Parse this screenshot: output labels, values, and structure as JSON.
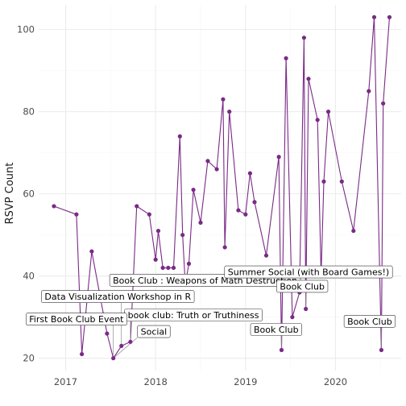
{
  "chart_data": {
    "type": "line",
    "title": "",
    "xlabel": "",
    "ylabel": "RSVP Count",
    "xlim": [
      2016.7,
      2020.73
    ],
    "ylim": [
      17,
      106
    ],
    "x_ticks": [
      2017,
      2018,
      2019,
      2020
    ],
    "x_tick_labels": [
      "2017",
      "2018",
      "2019",
      "2020"
    ],
    "y_ticks": [
      20,
      40,
      60,
      80,
      100
    ],
    "y_tick_labels": [
      "20",
      "40",
      "60",
      "80",
      "100"
    ],
    "grid": true,
    "series": [
      {
        "color": "#7a2a86",
        "points": [
          {
            "x": 2016.87,
            "y": 57
          },
          {
            "x": 2017.12,
            "y": 55
          },
          {
            "x": 2017.18,
            "y": 21
          },
          {
            "x": 2017.29,
            "y": 46
          },
          {
            "x": 2017.46,
            "y": 26
          },
          {
            "x": 2017.53,
            "y": 20
          },
          {
            "x": 2017.62,
            "y": 23
          },
          {
            "x": 2017.72,
            "y": 24
          },
          {
            "x": 2017.79,
            "y": 57
          },
          {
            "x": 2017.93,
            "y": 55
          },
          {
            "x": 2018.0,
            "y": 44
          },
          {
            "x": 2018.03,
            "y": 51
          },
          {
            "x": 2018.08,
            "y": 42
          },
          {
            "x": 2018.14,
            "y": 42
          },
          {
            "x": 2018.2,
            "y": 42
          },
          {
            "x": 2018.27,
            "y": 74
          },
          {
            "x": 2018.3,
            "y": 50
          },
          {
            "x": 2018.33,
            "y": 38
          },
          {
            "x": 2018.37,
            "y": 43
          },
          {
            "x": 2018.42,
            "y": 61
          },
          {
            "x": 2018.5,
            "y": 53
          },
          {
            "x": 2018.58,
            "y": 68
          },
          {
            "x": 2018.68,
            "y": 66
          },
          {
            "x": 2018.75,
            "y": 83
          },
          {
            "x": 2018.77,
            "y": 47
          },
          {
            "x": 2018.82,
            "y": 80
          },
          {
            "x": 2018.92,
            "y": 56
          },
          {
            "x": 2019.0,
            "y": 55
          },
          {
            "x": 2019.05,
            "y": 65
          },
          {
            "x": 2019.1,
            "y": 58
          },
          {
            "x": 2019.23,
            "y": 45
          },
          {
            "x": 2019.37,
            "y": 69
          },
          {
            "x": 2019.4,
            "y": 22
          },
          {
            "x": 2019.45,
            "y": 93
          },
          {
            "x": 2019.52,
            "y": 30
          },
          {
            "x": 2019.6,
            "y": 36
          },
          {
            "x": 2019.65,
            "y": 98
          },
          {
            "x": 2019.67,
            "y": 32
          },
          {
            "x": 2019.7,
            "y": 88
          },
          {
            "x": 2019.8,
            "y": 78
          },
          {
            "x": 2019.84,
            "y": 40
          },
          {
            "x": 2019.87,
            "y": 63
          },
          {
            "x": 2019.92,
            "y": 80
          },
          {
            "x": 2020.07,
            "y": 63
          },
          {
            "x": 2020.2,
            "y": 51
          },
          {
            "x": 2020.37,
            "y": 85
          },
          {
            "x": 2020.43,
            "y": 103
          },
          {
            "x": 2020.51,
            "y": 22
          },
          {
            "x": 2020.53,
            "y": 82
          },
          {
            "x": 2020.6,
            "y": 103
          }
        ]
      }
    ],
    "annotations": [
      {
        "text": "Book Club :  Weapons of Math Destruction",
        "x": 2018.55,
        "y": 39,
        "to_x": 2018.33,
        "to_y": 38
      },
      {
        "text": "Summer Social (with Board Games!)",
        "x": 2019.7,
        "y": 41,
        "to_x": 2019.6,
        "to_y": 36
      },
      {
        "text": "Book Club",
        "x": 2019.63,
        "y": 37.5,
        "to_x": 2019.67,
        "to_y": 32
      },
      {
        "text": "Data Visualization Workshop in R",
        "x": 2017.58,
        "y": 35,
        "to_x": 2017.62,
        "to_y": 23
      },
      {
        "text": "book club: Truth or Truthiness",
        "x": 2018.42,
        "y": 30.5,
        "to_x": 2017.72,
        "to_y": 24
      },
      {
        "text": "First Book Club Event",
        "x": 2017.12,
        "y": 29.5,
        "to_x": 2017.53,
        "to_y": 20
      },
      {
        "text": "Social",
        "x": 2017.98,
        "y": 26.5,
        "to_x": 2017.53,
        "to_y": 20
      },
      {
        "text": "Book Club",
        "x": 2019.34,
        "y": 27,
        "to_x": 2019.4,
        "to_y": 22
      },
      {
        "text": "Book Club",
        "x": 2020.38,
        "y": 29,
        "to_x": 2020.51,
        "to_y": 22
      }
    ]
  }
}
